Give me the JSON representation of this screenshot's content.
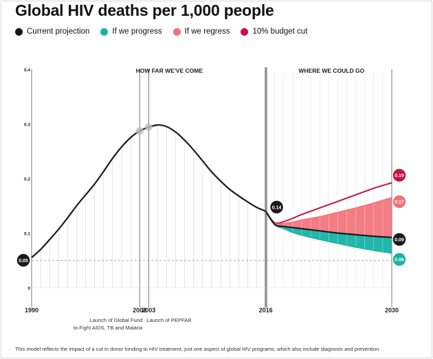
{
  "title": "Global HIV deaths per 1,000 people",
  "legend": [
    {
      "label": "Current projection",
      "color": "#1a1a1a"
    },
    {
      "label": "If we progress",
      "color": "#16b3a6"
    },
    {
      "label": "If we regress",
      "color": "#f07179"
    },
    {
      "label": "10% budget cut",
      "color": "#c8103f"
    }
  ],
  "footnote": "This model reflects the impact of a cut in donor funding to HIV treatment, just one aspect of global HIV programs, which also include diagnosis and prevention.",
  "chart_data": {
    "type": "line",
    "ylim": [
      0,
      0.4
    ],
    "xlim": [
      1990,
      2030
    ],
    "yticks": [
      "0",
      "0.1",
      "0.2",
      "0.3",
      "0.4"
    ],
    "xticks": [
      "1990",
      "2002",
      "2003",
      "2016",
      "2030"
    ],
    "grid": "vertical yearly lines",
    "section_labels": {
      "left": "HOW FAR WE'VE COME",
      "right": "WHERE WE COULD GO"
    },
    "annotations": [
      {
        "year": 2002,
        "text": [
          "Launch of Global Fund",
          "to Fight AIDS, TB and Malaria"
        ]
      },
      {
        "year": 2003,
        "text": [
          "Launch of PEPFAR"
        ]
      }
    ],
    "reference_value": "0.05",
    "series": [
      {
        "name": "Current projection",
        "color": "#1a1a1a",
        "x": [
          1990,
          1991,
          1992,
          1993,
          1994,
          1995,
          1996,
          1997,
          1998,
          1999,
          2000,
          2001,
          2002,
          2003,
          2004,
          2005,
          2006,
          2007,
          2008,
          2009,
          2010,
          2011,
          2012,
          2013,
          2014,
          2015,
          2016
        ],
        "y": [
          0.055,
          0.07,
          0.088,
          0.107,
          0.128,
          0.15,
          0.17,
          0.19,
          0.213,
          0.237,
          0.258,
          0.275,
          0.287,
          0.294,
          0.298,
          0.295,
          0.285,
          0.27,
          0.252,
          0.232,
          0.212,
          0.195,
          0.18,
          0.168,
          0.157,
          0.147,
          0.14
        ]
      },
      {
        "name": "Current projection",
        "color": "#1a1a1a",
        "x": [
          2016,
          2017,
          2018,
          2019,
          2020,
          2022,
          2024,
          2026,
          2028,
          2030
        ],
        "y": [
          0.14,
          0.116,
          0.112,
          0.11,
          0.108,
          0.104,
          0.1,
          0.097,
          0.094,
          0.092
        ]
      },
      {
        "name": "If we progress",
        "color": "#16b3a6",
        "x": [
          2016,
          2017,
          2018,
          2019,
          2020,
          2022,
          2024,
          2026,
          2028,
          2030
        ],
        "y": [
          0.14,
          0.115,
          0.108,
          0.101,
          0.096,
          0.088,
          0.081,
          0.074,
          0.068,
          0.063
        ]
      },
      {
        "name": "If we regress",
        "color": "#f07179",
        "x": [
          2016,
          2017,
          2018,
          2019,
          2020,
          2022,
          2024,
          2026,
          2028,
          2030
        ],
        "y": [
          0.14,
          0.118,
          0.118,
          0.12,
          0.124,
          0.13,
          0.138,
          0.146,
          0.155,
          0.165
        ]
      },
      {
        "name": "10% budget cut",
        "color": "#c8103f",
        "x": [
          2016,
          2017,
          2018,
          2019,
          2020,
          2022,
          2024,
          2026,
          2028,
          2030
        ],
        "y": [
          0.14,
          0.119,
          0.121,
          0.127,
          0.134,
          0.146,
          0.158,
          0.17,
          0.182,
          0.192
        ]
      }
    ],
    "end_labels": [
      {
        "series": "10% budget cut",
        "text": "0.19"
      },
      {
        "series": "If we regress",
        "text": "0.17"
      },
      {
        "series": "Current projection",
        "text": "0.09"
      },
      {
        "series": "If we progress",
        "text": "0.06"
      }
    ],
    "point_labels": [
      {
        "year": 2016,
        "text": "0.14"
      }
    ]
  }
}
